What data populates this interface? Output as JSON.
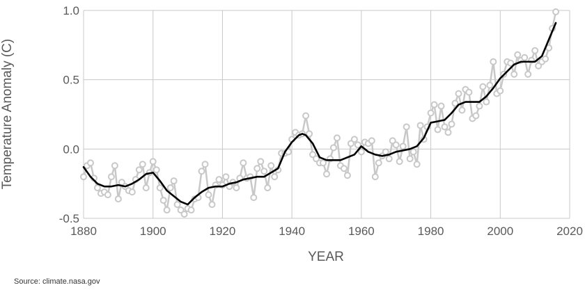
{
  "chart_data": {
    "type": "line",
    "xlabel": "YEAR",
    "ylabel": "Temperature Anomaly (C)",
    "xlim": [
      1880,
      2020
    ],
    "ylim": [
      -0.5,
      1.0
    ],
    "x_ticks": [
      1880,
      1900,
      1920,
      1940,
      1960,
      1980,
      2000,
      2020
    ],
    "x_tick_labels": [
      "1880",
      "1900",
      "1920",
      "1940",
      "1960",
      "1980",
      "2000",
      "2020"
    ],
    "y_ticks": [
      -0.5,
      0.0,
      0.5,
      1.0
    ],
    "y_tick_labels": [
      "-0.5",
      "0.0",
      "0.5",
      "1.0"
    ],
    "grid": true,
    "legend": "none",
    "series": [
      {
        "name": "",
        "style": "line with circle markers",
        "color": "#c8c8c8",
        "x": [
          1880,
          1881,
          1882,
          1883,
          1884,
          1885,
          1886,
          1887,
          1888,
          1889,
          1890,
          1891,
          1892,
          1893,
          1894,
          1895,
          1896,
          1897,
          1898,
          1899,
          1900,
          1901,
          1902,
          1903,
          1904,
          1905,
          1906,
          1907,
          1908,
          1909,
          1910,
          1911,
          1912,
          1913,
          1914,
          1915,
          1916,
          1917,
          1918,
          1919,
          1920,
          1921,
          1922,
          1923,
          1924,
          1925,
          1926,
          1927,
          1928,
          1929,
          1930,
          1931,
          1932,
          1933,
          1934,
          1935,
          1936,
          1937,
          1938,
          1939,
          1940,
          1941,
          1942,
          1943,
          1944,
          1945,
          1946,
          1947,
          1948,
          1949,
          1950,
          1951,
          1952,
          1953,
          1954,
          1955,
          1956,
          1957,
          1958,
          1959,
          1960,
          1961,
          1962,
          1963,
          1964,
          1965,
          1966,
          1967,
          1968,
          1969,
          1970,
          1971,
          1972,
          1973,
          1974,
          1975,
          1976,
          1977,
          1978,
          1979,
          1980,
          1981,
          1982,
          1983,
          1984,
          1985,
          1986,
          1987,
          1988,
          1989,
          1990,
          1991,
          1992,
          1993,
          1994,
          1995,
          1996,
          1997,
          1998,
          1999,
          2000,
          2001,
          2002,
          2003,
          2004,
          2005,
          2006,
          2007,
          2008,
          2009,
          2010,
          2011,
          2012,
          2013,
          2014,
          2015,
          2016
        ],
        "y": [
          -0.2,
          -0.12,
          -0.1,
          -0.21,
          -0.28,
          -0.32,
          -0.31,
          -0.33,
          -0.2,
          -0.12,
          -0.36,
          -0.24,
          -0.27,
          -0.3,
          -0.31,
          -0.22,
          -0.15,
          -0.11,
          -0.28,
          -0.17,
          -0.09,
          -0.15,
          -0.28,
          -0.37,
          -0.44,
          -0.28,
          -0.23,
          -0.4,
          -0.44,
          -0.47,
          -0.43,
          -0.44,
          -0.36,
          -0.35,
          -0.16,
          -0.11,
          -0.33,
          -0.4,
          -0.26,
          -0.22,
          -0.26,
          -0.2,
          -0.27,
          -0.24,
          -0.28,
          -0.21,
          -0.1,
          -0.21,
          -0.2,
          -0.35,
          -0.14,
          -0.09,
          -0.16,
          -0.28,
          -0.12,
          -0.2,
          -0.15,
          -0.03,
          -0.03,
          -0.02,
          0.07,
          0.12,
          0.1,
          0.11,
          0.24,
          0.11,
          -0.04,
          -0.07,
          -0.1,
          -0.1,
          -0.18,
          -0.07,
          0.01,
          0.08,
          -0.12,
          -0.14,
          -0.19,
          0.04,
          0.07,
          0.03,
          -0.02,
          0.05,
          0.04,
          0.06,
          -0.2,
          -0.1,
          -0.05,
          -0.02,
          -0.07,
          0.06,
          0.03,
          -0.09,
          0.02,
          0.16,
          -0.07,
          -0.02,
          -0.11,
          0.17,
          0.07,
          0.16,
          0.26,
          0.32,
          0.14,
          0.31,
          0.16,
          0.12,
          0.18,
          0.33,
          0.4,
          0.28,
          0.43,
          0.41,
          0.22,
          0.24,
          0.31,
          0.45,
          0.34,
          0.46,
          0.63,
          0.4,
          0.42,
          0.54,
          0.63,
          0.62,
          0.54,
          0.68,
          0.64,
          0.66,
          0.54,
          0.64,
          0.71,
          0.6,
          0.63,
          0.65,
          0.73,
          0.87,
          0.99
        ]
      },
      {
        "name": "",
        "style": "smoothed line",
        "color": "#000000",
        "x": [
          1880,
          1882,
          1884,
          1886,
          1888,
          1890,
          1892,
          1894,
          1896,
          1898,
          1900,
          1902,
          1904,
          1906,
          1908,
          1910,
          1912,
          1914,
          1916,
          1918,
          1920,
          1922,
          1924,
          1926,
          1928,
          1930,
          1932,
          1934,
          1936,
          1938,
          1940,
          1942,
          1943,
          1944,
          1946,
          1948,
          1950,
          1952,
          1954,
          1956,
          1958,
          1960,
          1962,
          1964,
          1966,
          1968,
          1970,
          1972,
          1974,
          1976,
          1978,
          1980,
          1982,
          1984,
          1986,
          1988,
          1990,
          1992,
          1994,
          1996,
          1998,
          2000,
          2002,
          2004,
          2006,
          2008,
          2010,
          2012,
          2014,
          2016
        ],
        "y": [
          -0.13,
          -0.2,
          -0.25,
          -0.27,
          -0.27,
          -0.26,
          -0.27,
          -0.25,
          -0.22,
          -0.18,
          -0.17,
          -0.23,
          -0.3,
          -0.34,
          -0.38,
          -0.4,
          -0.35,
          -0.31,
          -0.28,
          -0.27,
          -0.27,
          -0.25,
          -0.24,
          -0.22,
          -0.21,
          -0.2,
          -0.2,
          -0.17,
          -0.14,
          -0.02,
          0.05,
          0.1,
          0.11,
          0.1,
          0.04,
          -0.06,
          -0.08,
          -0.08,
          -0.08,
          -0.06,
          -0.04,
          0.02,
          -0.02,
          -0.04,
          -0.05,
          -0.04,
          -0.02,
          -0.01,
          0.0,
          0.02,
          0.08,
          0.19,
          0.2,
          0.21,
          0.26,
          0.32,
          0.34,
          0.34,
          0.34,
          0.38,
          0.44,
          0.51,
          0.56,
          0.61,
          0.63,
          0.63,
          0.63,
          0.67,
          0.79,
          0.91
        ]
      }
    ]
  },
  "source_text": "Source: climate.nasa.gov"
}
